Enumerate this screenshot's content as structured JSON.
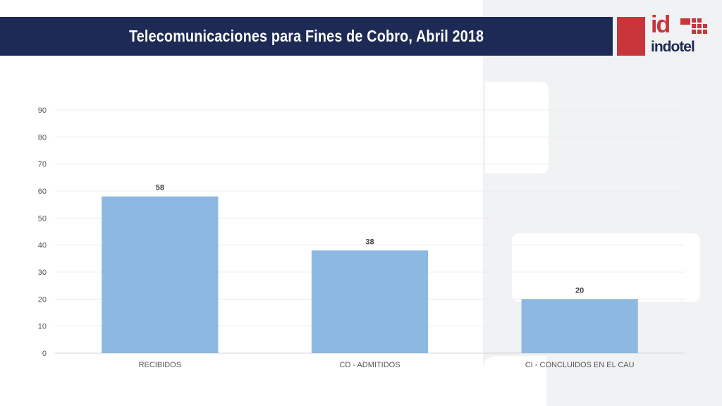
{
  "header": {
    "title": "Telecomunicaciones para Fines de Cobro, Abril 2018"
  },
  "logo": {
    "mark": "id",
    "wordmark": "indotel"
  },
  "colors": {
    "title_bar": "#1c2a55",
    "brand_red": "#c8353b",
    "bar": "#8db8e2",
    "background_shape": "#f1f2f3"
  },
  "chart_data": {
    "type": "bar",
    "title": "",
    "categories": [
      "RECIBIDOS",
      "CD - ADMITIDOS",
      "CI - CONCLUIDOS EN EL CAU"
    ],
    "values": [
      58,
      38,
      20
    ],
    "data_labels": [
      "58",
      "38",
      "20"
    ],
    "ylim": [
      0,
      90
    ],
    "yticks": [
      0,
      10,
      20,
      30,
      40,
      50,
      60,
      70,
      80,
      90
    ],
    "grid": true,
    "legend": "none"
  }
}
